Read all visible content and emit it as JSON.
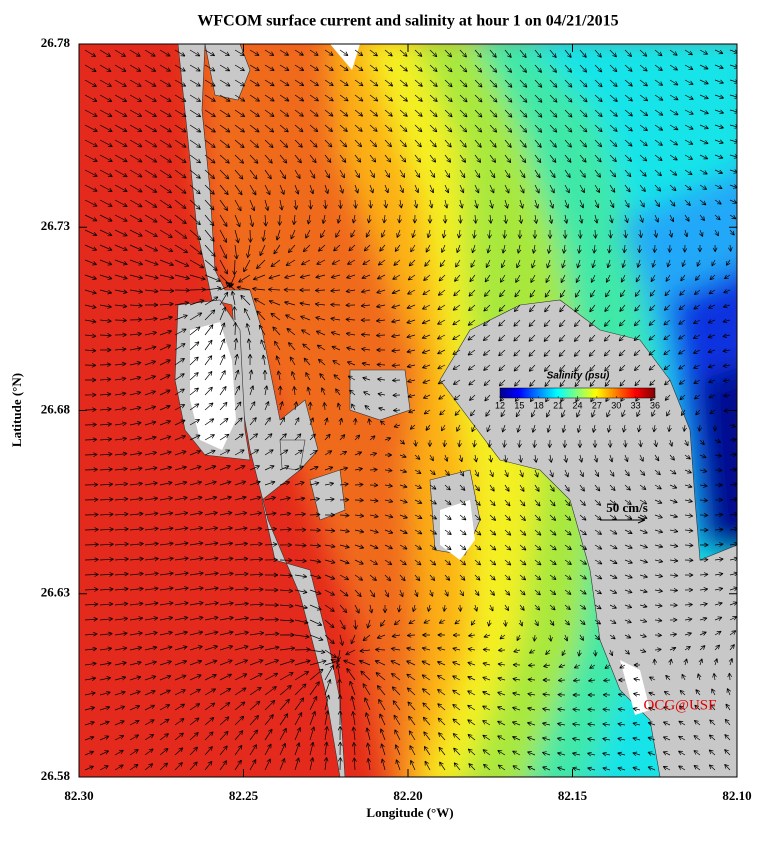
{
  "title": "WFCOM surface current and salinity at hour 1 on 04/21/2015",
  "x_axis": {
    "label": "Longitude (°W)",
    "lim": [
      82.3,
      82.1
    ],
    "ticks": [
      {
        "value": 82.3,
        "label": "82.30"
      },
      {
        "value": 82.25,
        "label": "82.25"
      },
      {
        "value": 82.2,
        "label": "82.20"
      },
      {
        "value": 82.15,
        "label": "82.15"
      },
      {
        "value": 82.1,
        "label": "82.10"
      }
    ]
  },
  "y_axis": {
    "label": "Latitude (°N)",
    "lim": [
      26.58,
      26.78
    ],
    "ticks": [
      26.58,
      26.63,
      26.68,
      26.73,
      26.78
    ]
  },
  "colorbar": {
    "title": "Salinity (psu)",
    "lim": [
      12,
      36
    ],
    "ticks": [
      12,
      15,
      18,
      21,
      24,
      27,
      30,
      33,
      36
    ]
  },
  "scale_label": "50 cm/s",
  "credit": "OCG@USF"
}
